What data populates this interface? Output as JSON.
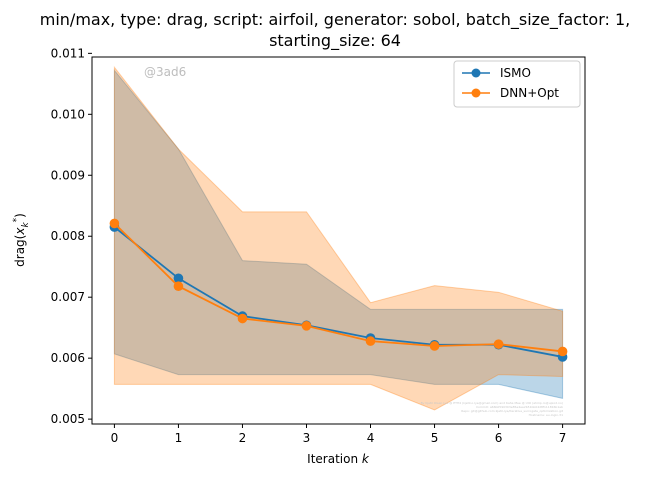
{
  "chart_data": {
    "type": "line",
    "title_line1": "min/max, type: drag, script: airfoil, generator: sobol, batch_size_factor: 1,",
    "title_line2": "starting_size: 64",
    "xlabel_prefix": "Iteration ",
    "xlabel_var": "k",
    "ylabel": "drag(x*k)",
    "x": [
      0,
      1,
      2,
      3,
      4,
      5,
      6,
      7
    ],
    "xlim": [
      -0.35,
      7.35
    ],
    "ylim": [
      0.00492,
      0.01094
    ],
    "yticks": [
      "0.005",
      "0.006",
      "0.007",
      "0.008",
      "0.009",
      "0.010",
      "0.011"
    ],
    "ytick_values": [
      0.005,
      0.006,
      0.007,
      0.008,
      0.009,
      0.01,
      0.011
    ],
    "grid": false,
    "legend_position": "top-right",
    "watermark": "@3ad6",
    "series": [
      {
        "name": "ISMO",
        "color": "#1f77b4",
        "mean": [
          0.00815,
          0.00731,
          0.00669,
          0.00654,
          0.00633,
          0.00622,
          0.00622,
          0.00602
        ],
        "min": [
          0.00607,
          0.00573,
          0.00573,
          0.00573,
          0.00573,
          0.00557,
          0.00557,
          0.00534
        ],
        "max": [
          0.01072,
          0.00943,
          0.0076,
          0.00754,
          0.0068,
          0.0068,
          0.0068,
          0.0068
        ]
      },
      {
        "name": "DNN+Opt",
        "color": "#ff7f0e",
        "mean": [
          0.00821,
          0.00718,
          0.00665,
          0.00653,
          0.00628,
          0.0062,
          0.00623,
          0.00611
        ],
        "min": [
          0.00557,
          0.00557,
          0.00557,
          0.00557,
          0.00557,
          0.00515,
          0.00573,
          0.0057
        ],
        "max": [
          0.01077,
          0.00943,
          0.0084,
          0.0084,
          0.00691,
          0.00719,
          0.00708,
          0.00677
        ]
      }
    ]
  }
}
